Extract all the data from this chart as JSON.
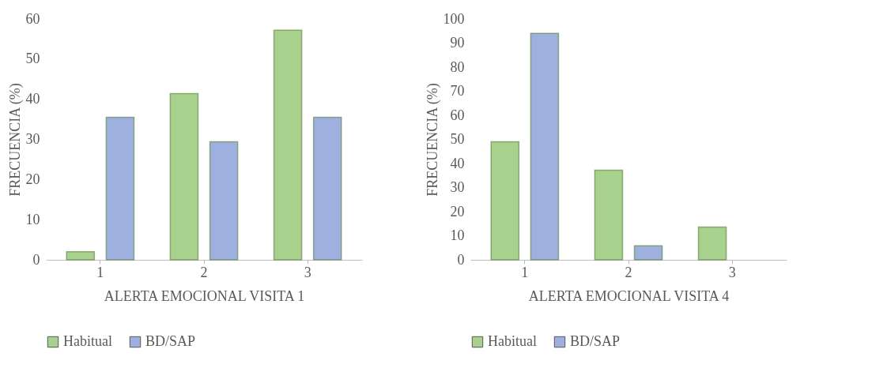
{
  "chart_data": [
    {
      "type": "bar",
      "xlabel": "ALERTA EMOCIONAL VISITA 1",
      "ylabel": "FRECUENCIA (%)",
      "categories": [
        "1",
        "2",
        "3"
      ],
      "ylim": [
        0,
        60
      ],
      "yticks": [
        0,
        10,
        20,
        30,
        40,
        50,
        60
      ],
      "grid": false,
      "legend": "bottom",
      "series": [
        {
          "name": "Habitual",
          "color": "#a9d18e",
          "values": [
            2,
            41.4,
            57.2
          ]
        },
        {
          "name": "BD/SAP",
          "color": "#9db0e0",
          "values": [
            35.5,
            29.4,
            35.5
          ]
        }
      ]
    },
    {
      "type": "bar",
      "xlabel": "ALERTA EMOCIONAL VISITA 4",
      "ylabel": "FRECUENCIA (%)",
      "categories": [
        "1",
        "2",
        "3"
      ],
      "ylim": [
        0,
        100
      ],
      "yticks": [
        0,
        10,
        20,
        30,
        40,
        50,
        60,
        70,
        80,
        90,
        100
      ],
      "grid": false,
      "legend": "bottom",
      "series": [
        {
          "name": "Habitual",
          "color": "#a9d18e",
          "values": [
            49,
            37.2,
            13.6
          ]
        },
        {
          "name": "BD/SAP",
          "color": "#9db0e0",
          "values": [
            94,
            5.8,
            null
          ]
        }
      ]
    }
  ]
}
